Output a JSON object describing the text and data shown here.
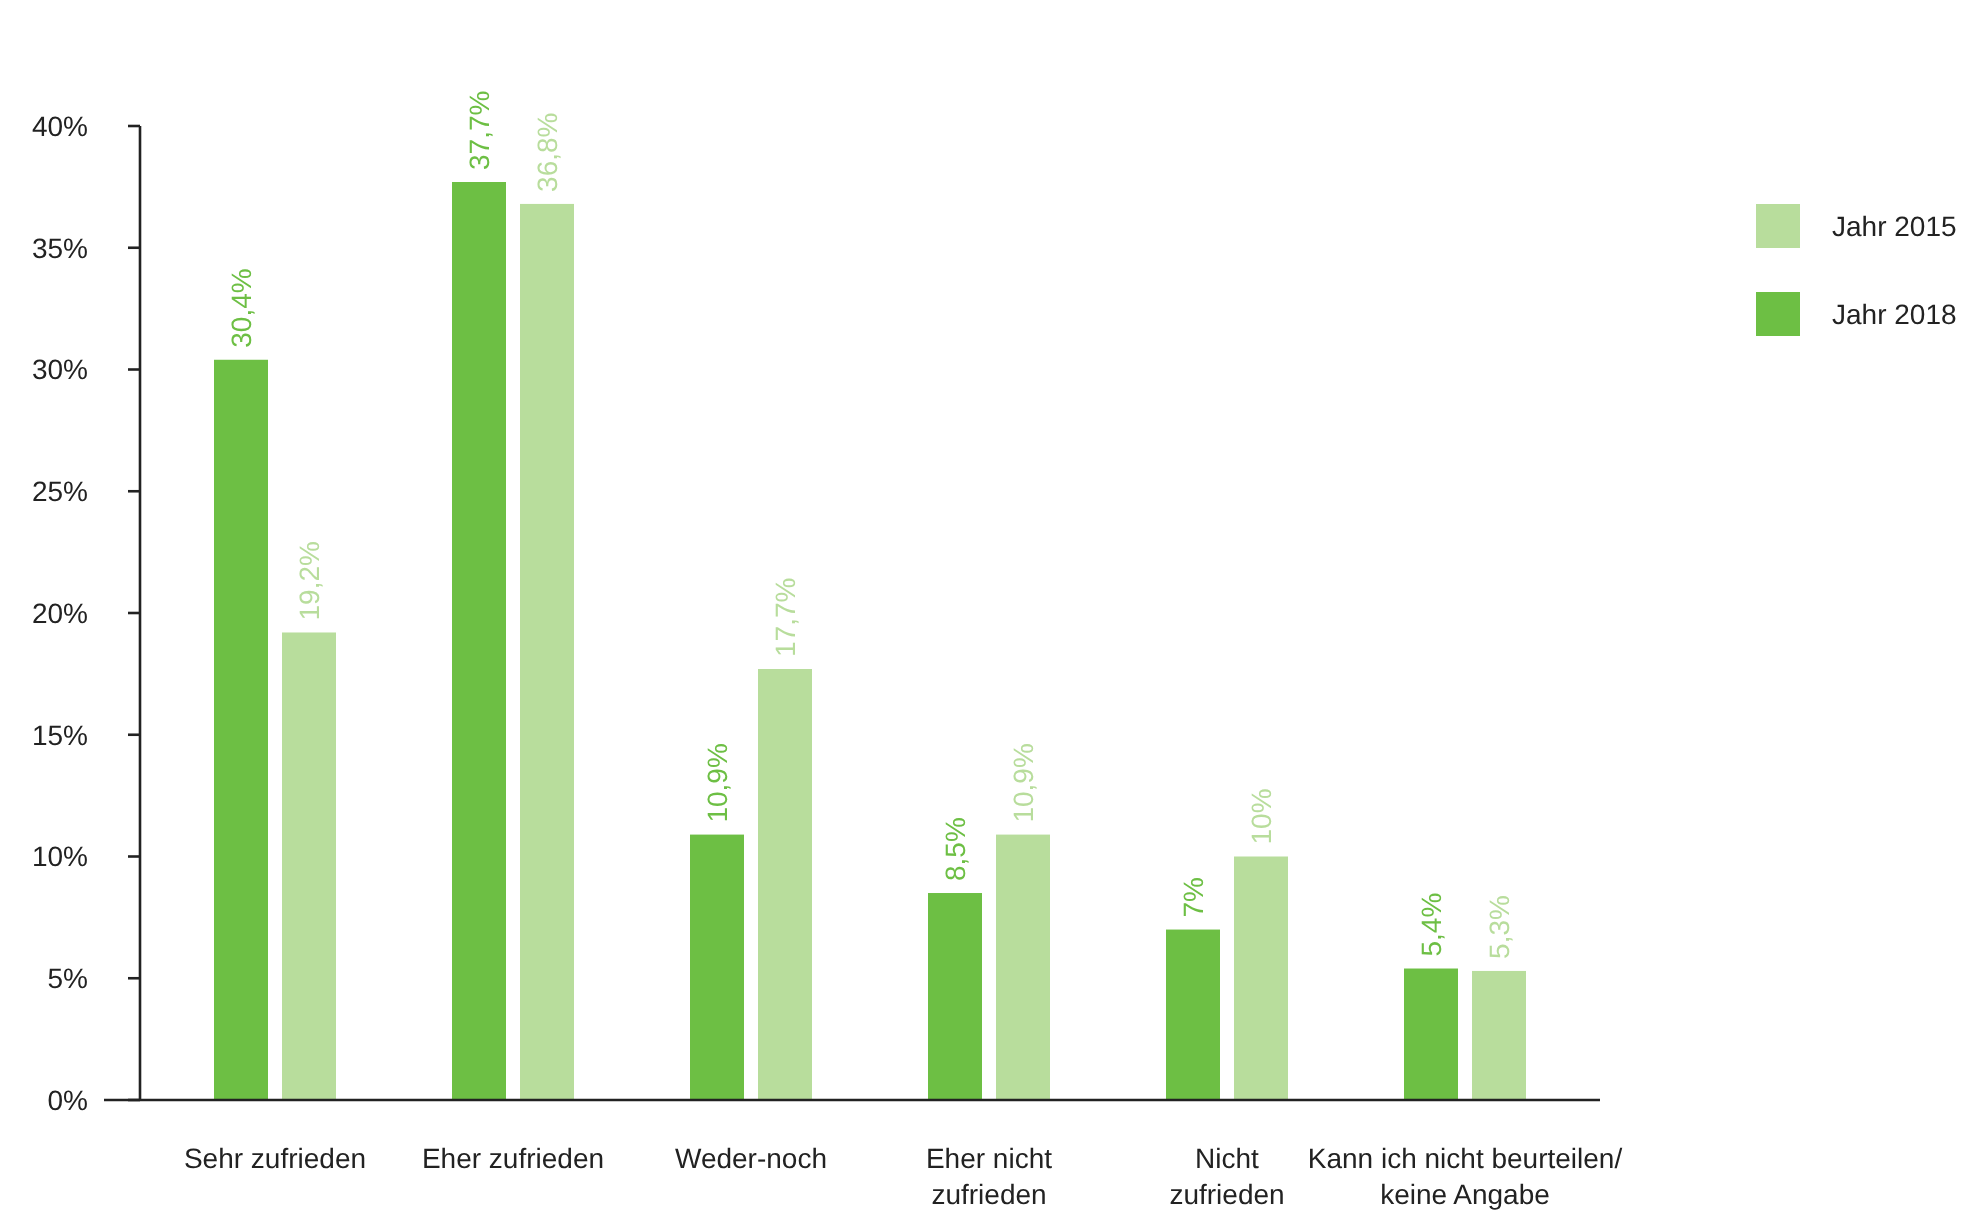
{
  "chart_data": {
    "type": "bar",
    "categories": [
      "Sehr zufrieden",
      "Eher zufrieden",
      "Weder-noch",
      "Eher nicht zufrieden",
      "Nicht zufrieden",
      "Kann ich nicht beurteilen/ keine Angabe"
    ],
    "series": [
      {
        "name": "Jahr 2018",
        "color": "#6dbf44",
        "values": [
          30.4,
          37.7,
          10.9,
          8.5,
          7,
          5.4
        ],
        "value_labels": [
          "30,4%",
          "37,7%",
          "10,9%",
          "8,5%",
          "7%",
          "5,4%"
        ]
      },
      {
        "name": "Jahr 2015",
        "color": "#b8dd9c",
        "values": [
          19.2,
          36.8,
          17.7,
          10.9,
          10,
          5.3
        ],
        "value_labels": [
          "19,2%",
          "36,8%",
          "17,7%",
          "10,9%",
          "10%",
          "5,3%"
        ]
      }
    ],
    "ylim": [
      0,
      40
    ],
    "yticks": [
      {
        "value": 0,
        "label": "0%"
      },
      {
        "value": 5,
        "label": "5%"
      },
      {
        "value": 10,
        "label": "10%"
      },
      {
        "value": 15,
        "label": "15%"
      },
      {
        "value": 20,
        "label": "20%"
      },
      {
        "value": 25,
        "label": "25%"
      },
      {
        "value": 30,
        "label": "30%"
      },
      {
        "value": 35,
        "label": "35%"
      },
      {
        "value": 40,
        "label": "40%"
      }
    ],
    "legend": "right"
  }
}
